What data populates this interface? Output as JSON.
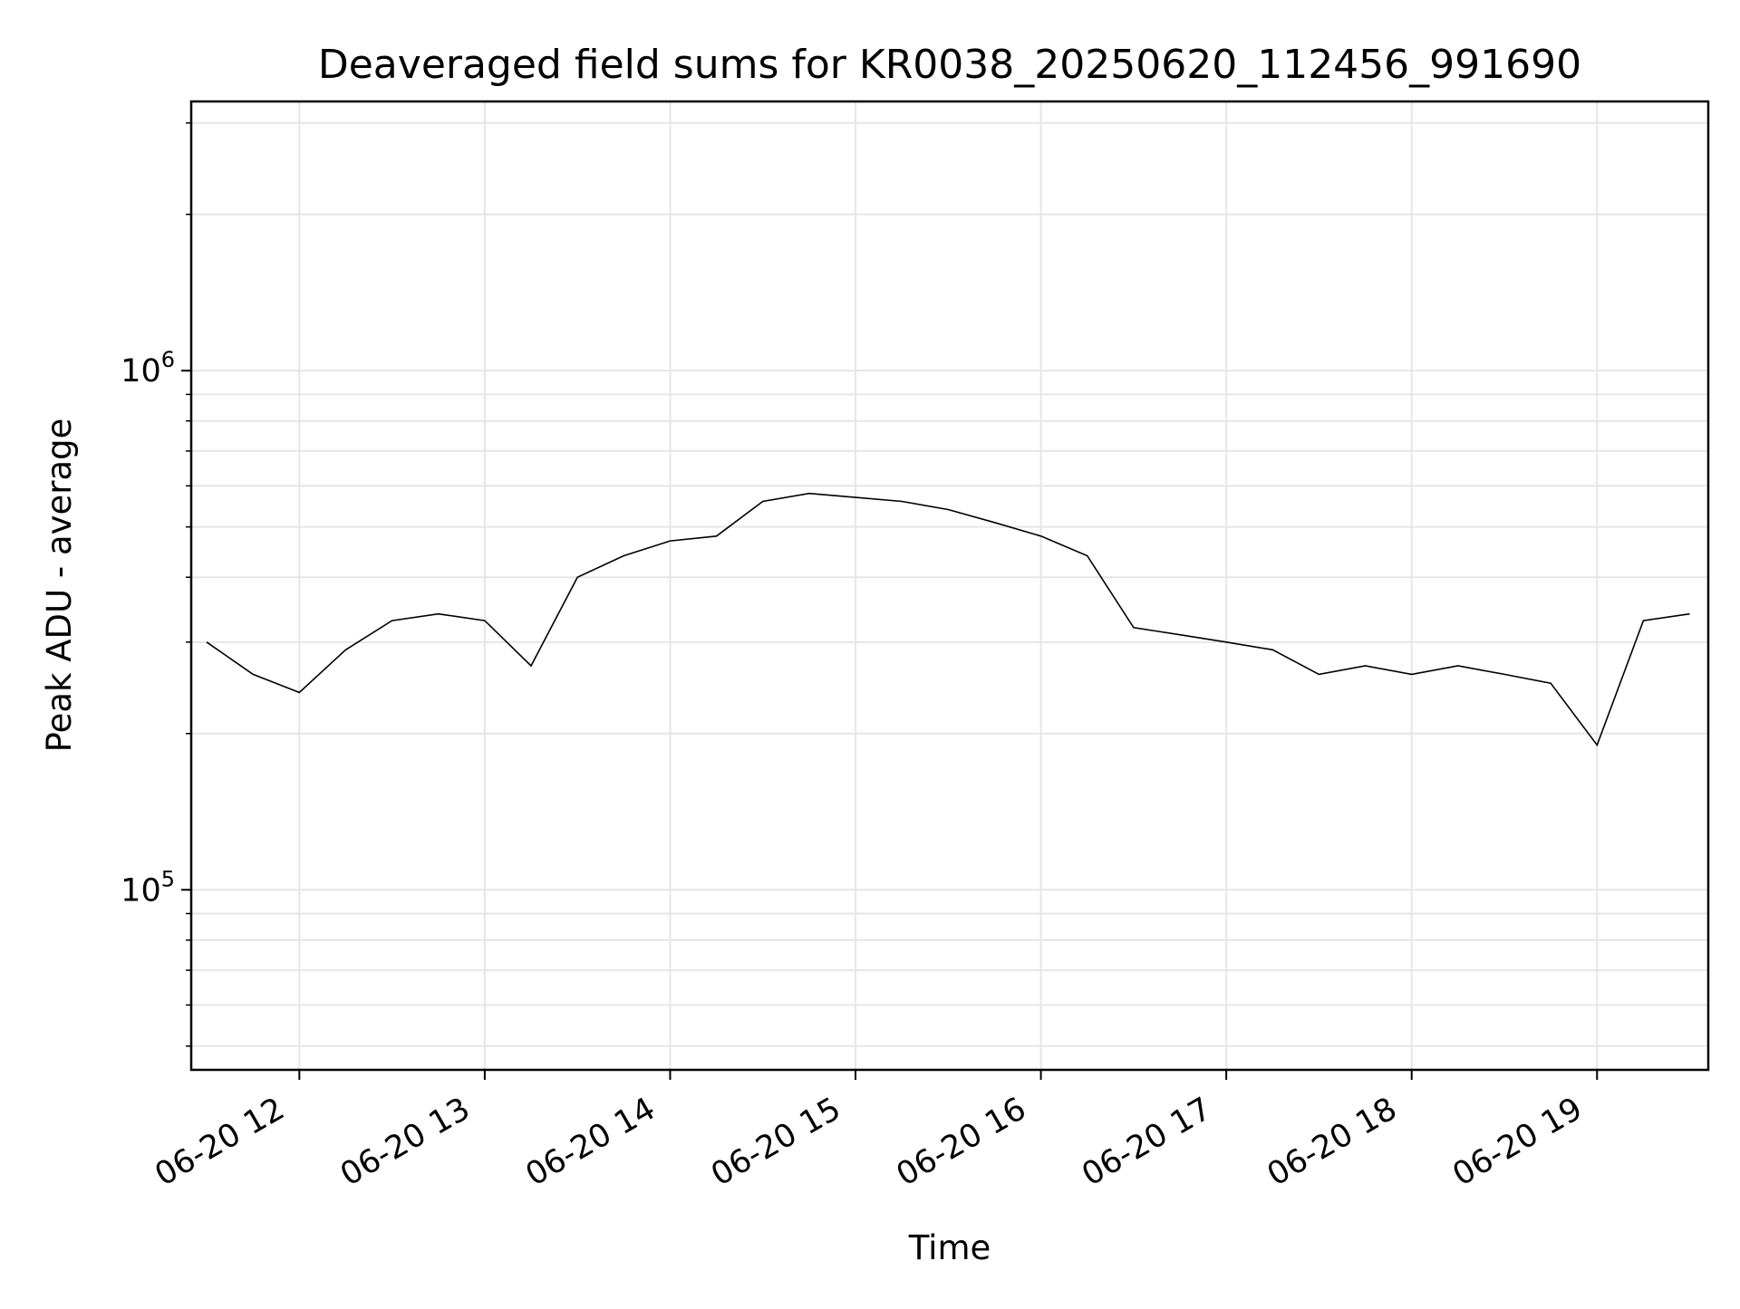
{
  "chart_data": {
    "type": "line",
    "title": "Deaveraged field sums for KR0038_20250620_112456_991690",
    "xlabel": "Time",
    "ylabel": "Peak ADU - average",
    "yscale": "log",
    "xlim": [
      "2025-06-20T11:25",
      "2025-06-20T19:36"
    ],
    "ylim": [
      45000,
      3300000
    ],
    "grid": true,
    "line_color": "#000000",
    "grid_color": "#e6e6e6",
    "x_tick_labels": [
      "06-20 12",
      "06-20 13",
      "06-20 14",
      "06-20 15",
      "06-20 16",
      "06-20 17",
      "06-20 18",
      "06-20 19"
    ],
    "y_tick_labels": [
      {
        "base": "10",
        "exp": "5"
      },
      {
        "base": "10",
        "exp": "6"
      }
    ],
    "series": [
      {
        "x": [
          "2025-06-20T11:30",
          "2025-06-20T11:45",
          "2025-06-20T12:00",
          "2025-06-20T12:15",
          "2025-06-20T12:30",
          "2025-06-20T12:45",
          "2025-06-20T13:00",
          "2025-06-20T13:15",
          "2025-06-20T13:30",
          "2025-06-20T13:45",
          "2025-06-20T14:00",
          "2025-06-20T14:15",
          "2025-06-20T14:30",
          "2025-06-20T14:45",
          "2025-06-20T15:00",
          "2025-06-20T15:15",
          "2025-06-20T15:30",
          "2025-06-20T15:45",
          "2025-06-20T16:00",
          "2025-06-20T16:15",
          "2025-06-20T16:30",
          "2025-06-20T16:45",
          "2025-06-20T17:00",
          "2025-06-20T17:15",
          "2025-06-20T17:30",
          "2025-06-20T17:45",
          "2025-06-20T18:00",
          "2025-06-20T18:15",
          "2025-06-20T18:30",
          "2025-06-20T18:45",
          "2025-06-20T19:00",
          "2025-06-20T19:15",
          "2025-06-20T19:30"
        ],
        "y": [
          300000,
          260000,
          240000,
          290000,
          330000,
          340000,
          330000,
          270000,
          400000,
          440000,
          470000,
          480000,
          560000,
          580000,
          570000,
          560000,
          540000,
          510000,
          480000,
          440000,
          320000,
          310000,
          300000,
          290000,
          260000,
          270000,
          260000,
          270000,
          260000,
          250000,
          190000,
          330000,
          340000
        ]
      }
    ]
  }
}
